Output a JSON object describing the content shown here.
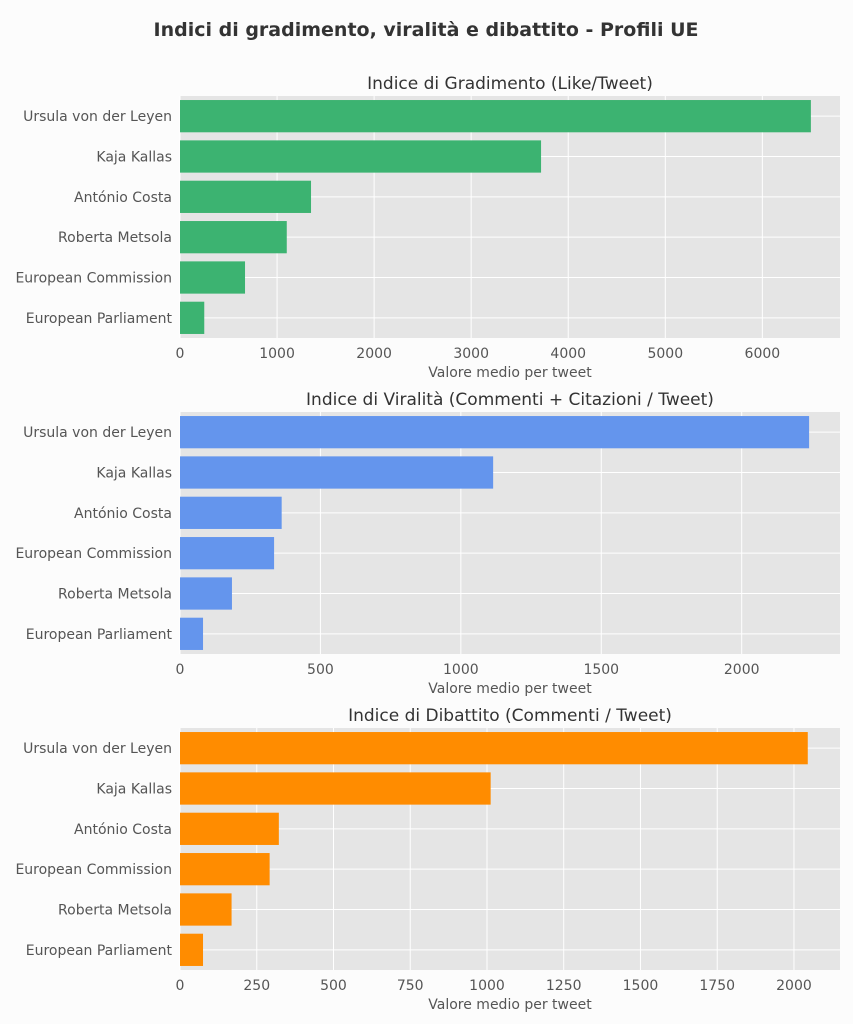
{
  "figure": {
    "title": "Indici di gradimento, viralità e dibattito - Profili UE",
    "background": "#fcfcfc",
    "panel_background": "#e5e5e5",
    "grid_color": "#ffffff"
  },
  "chart_data": [
    {
      "type": "bar",
      "orientation": "horizontal",
      "title": "Indice di Gradimento (Like/Tweet)",
      "xlabel": "Valore medio per tweet",
      "ylabel": "",
      "categories": [
        "Ursula von der Leyen",
        "Kaja Kallas",
        "António Costa",
        "Roberta Metsola",
        "European Commission",
        "European Parliament"
      ],
      "values": [
        6500,
        3720,
        1350,
        1100,
        670,
        250
      ],
      "xlim": [
        0,
        6800
      ],
      "xticks": [
        0,
        1000,
        2000,
        3000,
        4000,
        5000,
        6000
      ],
      "color": "#3cb371",
      "grid": true
    },
    {
      "type": "bar",
      "orientation": "horizontal",
      "title": "Indice di Viralità (Commenti + Citazioni / Tweet)",
      "xlabel": "Valore medio per tweet",
      "ylabel": "",
      "categories": [
        "Ursula von der Leyen",
        "Kaja Kallas",
        "António Costa",
        "European Commission",
        "Roberta Metsola",
        "European Parliament"
      ],
      "values": [
        2240,
        1115,
        362,
        335,
        185,
        82
      ],
      "xlim": [
        0,
        2350
      ],
      "xticks": [
        0,
        500,
        1000,
        1500,
        2000
      ],
      "color": "#6495ed",
      "grid": true
    },
    {
      "type": "bar",
      "orientation": "horizontal",
      "title": "Indice di Dibattito (Commenti / Tweet)",
      "xlabel": "Valore medio per tweet",
      "ylabel": "",
      "categories": [
        "Ursula von der Leyen",
        "Kaja Kallas",
        "António Costa",
        "European Commission",
        "Roberta Metsola",
        "European Parliament"
      ],
      "values": [
        2045,
        1012,
        322,
        292,
        168,
        75
      ],
      "xlim": [
        0,
        2150
      ],
      "xticks": [
        0,
        250,
        500,
        750,
        1000,
        1250,
        1500,
        1750,
        2000
      ],
      "color": "#ff8c00",
      "grid": true
    }
  ]
}
